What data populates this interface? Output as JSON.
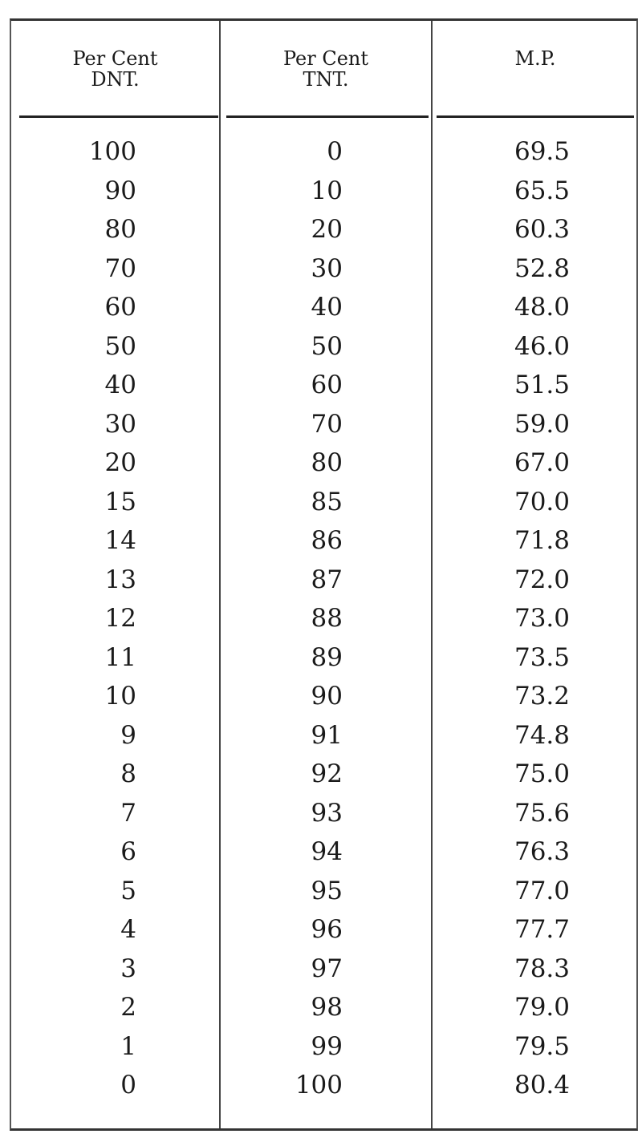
{
  "headers": [
    {
      "line1": "Per Cent",
      "line2": "DNT."
    },
    {
      "line1": "Per Cent",
      "line2": "TNT."
    },
    {
      "line1": "M.P.",
      "line2": ""
    }
  ],
  "rows": [
    [
      "100",
      "0",
      "69.5"
    ],
    [
      "90",
      "10",
      "65.5"
    ],
    [
      "80",
      "20",
      "60.3"
    ],
    [
      "70",
      "30",
      "52.8"
    ],
    [
      "60",
      "40",
      "48.0"
    ],
    [
      "50",
      "50",
      "46.0"
    ],
    [
      "40",
      "60",
      "51.5"
    ],
    [
      "30",
      "70",
      "59.0"
    ],
    [
      "20",
      "80",
      "67.0"
    ],
    [
      "15",
      "85",
      "70.0"
    ],
    [
      "14",
      "86",
      "71.8"
    ],
    [
      "13",
      "87",
      "72.0"
    ],
    [
      "12",
      "88",
      "73.0"
    ],
    [
      "11",
      "89",
      "73.5"
    ],
    [
      "10",
      "90",
      "73.2"
    ],
    [
      "9",
      "91",
      "74.8"
    ],
    [
      "8",
      "92",
      "75.0"
    ],
    [
      "7",
      "93",
      "75.6"
    ],
    [
      "6",
      "94",
      "76.3"
    ],
    [
      "5",
      "95",
      "77.0"
    ],
    [
      "4",
      "96",
      "77.7"
    ],
    [
      "3",
      "97",
      "78.3"
    ],
    [
      "2",
      "98",
      "79.0"
    ],
    [
      "1",
      "99",
      "79.5"
    ],
    [
      "0",
      "100",
      "80.4"
    ]
  ]
}
